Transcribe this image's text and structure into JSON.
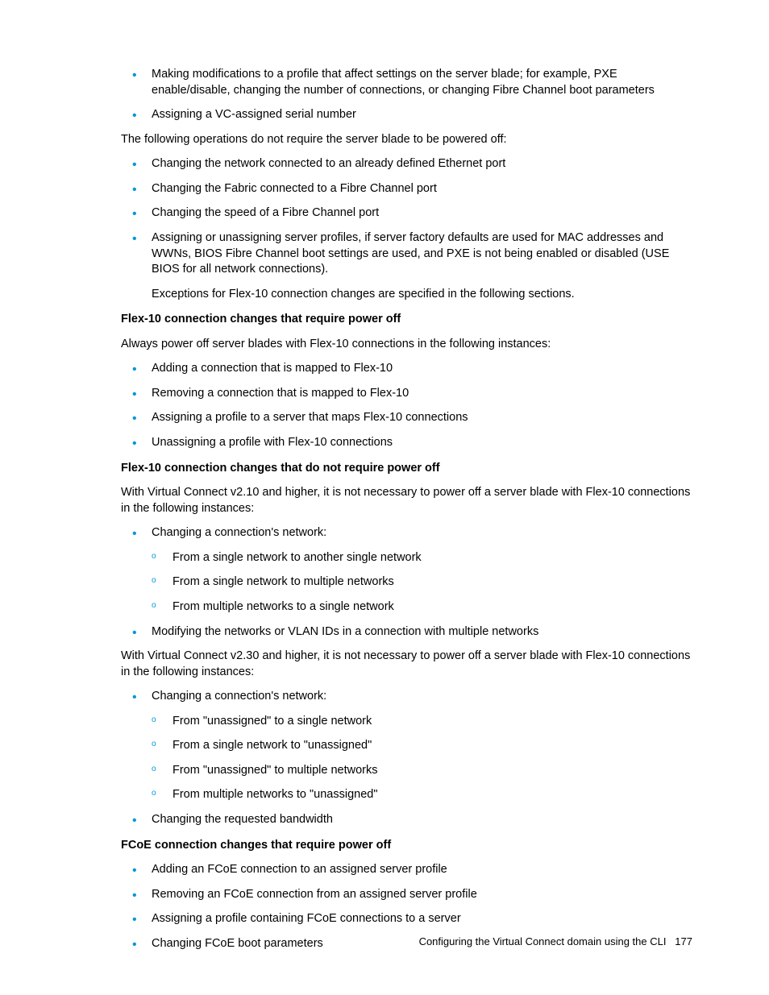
{
  "colors": {
    "bullet_color": "#0096d6",
    "text_color": "#000000",
    "background_color": "#ffffff"
  },
  "typography": {
    "body_font_size": 14.5,
    "footer_font_size": 13,
    "font_family": "Arial, Helvetica, sans-serif",
    "line_height": 1.35
  },
  "section1": {
    "items": [
      "Making modifications to a profile that affect settings on the server blade; for example, PXE enable/disable, changing the number of connections, or changing Fibre Channel boot parameters",
      "Assigning a VC-assigned serial number"
    ]
  },
  "para1": "The following operations do not require the server blade to be powered off:",
  "section2": {
    "items": [
      "Changing the network connected to an already defined Ethernet port",
      "Changing the Fabric connected to a Fibre Channel port",
      "Changing the speed of a Fibre Channel port",
      "Assigning or unassigning server profiles, if server factory defaults are used for MAC addresses and WWNs, BIOS Fibre Channel boot settings are used, and PXE is not being enabled or disabled (USE BIOS for all network connections)."
    ],
    "nested_para": "Exceptions for Flex-10 connection changes are specified in the following sections."
  },
  "heading1": "Flex-10 connection changes that require power off",
  "para2": "Always power off server blades with Flex-10 connections in the following instances:",
  "section3": {
    "items": [
      "Adding a connection that is mapped to Flex-10",
      "Removing a connection that is mapped to Flex-10",
      "Assigning a profile to a server that maps Flex-10 connections",
      "Unassigning a profile with Flex-10 connections"
    ]
  },
  "heading2": "Flex-10 connection changes that do not require power off",
  "para3": "With Virtual Connect v2.10 and higher, it is not necessary to power off a server blade with Flex-10 connections in the following instances:",
  "section4": {
    "item1": "Changing a connection's network:",
    "subitems1": [
      "From a single network to another single network",
      "From a single network to multiple networks",
      "From multiple networks to a single network"
    ],
    "item2": "Modifying the networks or VLAN IDs in a connection with multiple networks"
  },
  "para4": "With Virtual Connect v2.30 and higher, it is not necessary to power off a server blade with Flex-10 connections in the following instances:",
  "section5": {
    "item1": "Changing a connection's network:",
    "subitems1": [
      "From \"unassigned\" to a single network",
      "From a single network to \"unassigned\"",
      "From \"unassigned\" to multiple networks",
      "From multiple networks to \"unassigned\""
    ],
    "item2": "Changing the requested bandwidth"
  },
  "heading3": "FCoE connection changes that require power off",
  "section6": {
    "items": [
      "Adding an FCoE connection to an assigned server profile",
      "Removing an FCoE connection from an assigned server profile",
      "Assigning a profile containing FCoE connections to a server",
      "Changing FCoE boot parameters"
    ]
  },
  "footer": {
    "text": "Configuring the Virtual Connect domain using the CLI",
    "page_number": "177"
  }
}
